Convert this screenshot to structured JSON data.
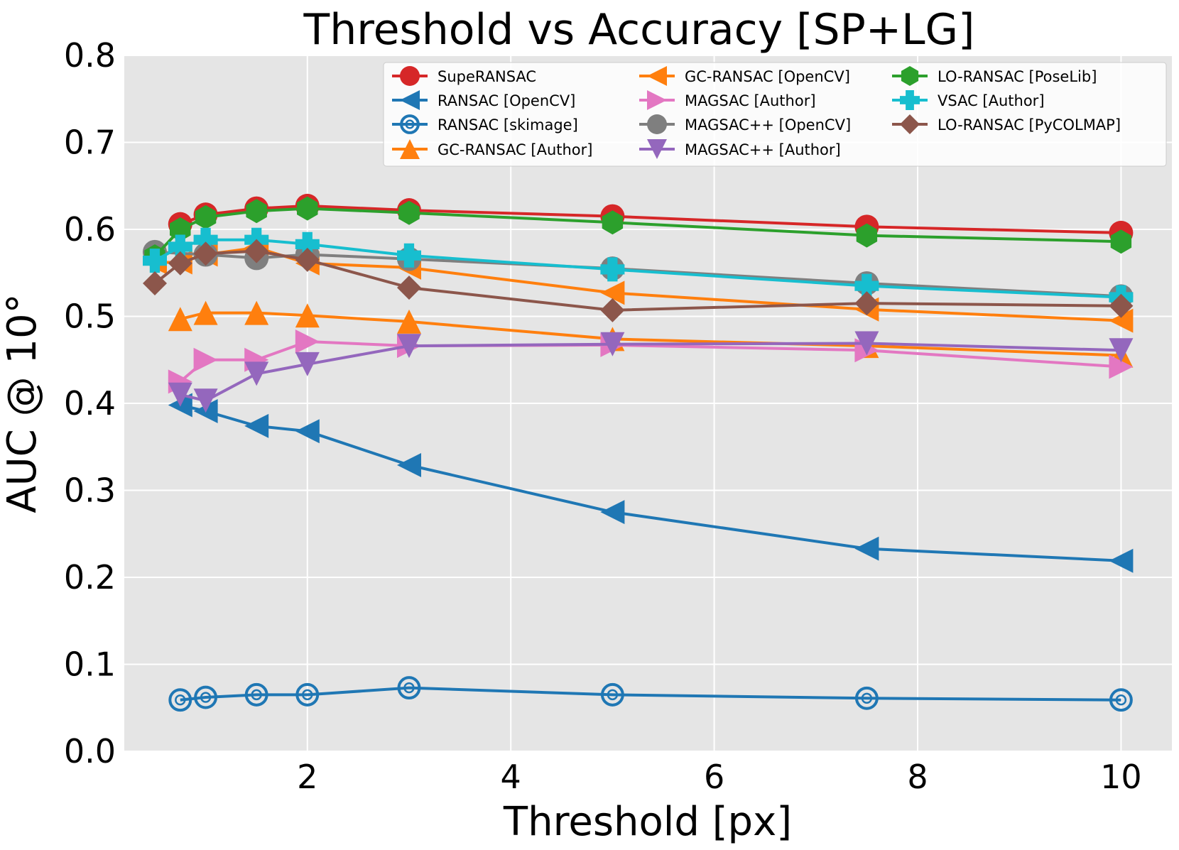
{
  "chart_data": {
    "type": "line",
    "title": "Threshold vs Accuracy [SP+LG]",
    "xlabel": "Threshold [px]",
    "ylabel": "AUC @ 10°",
    "xlim": [
      0.2,
      10.5
    ],
    "ylim": [
      0.0,
      0.8
    ],
    "xticks": [
      2,
      4,
      6,
      8,
      10
    ],
    "yticks": [
      0.0,
      0.1,
      0.2,
      0.3,
      0.4,
      0.5,
      0.6,
      0.7,
      0.8
    ],
    "xtick_labels": [
      "2",
      "4",
      "6",
      "8",
      "10"
    ],
    "ytick_labels": [
      "0.0",
      "0.1",
      "0.2",
      "0.3",
      "0.4",
      "0.5",
      "0.6",
      "0.7",
      "0.8"
    ],
    "grid": true,
    "legend_position": "top-right",
    "series": [
      {
        "name": "SupeRANSAC",
        "color": "#d62728",
        "marker": "circle",
        "x": [
          0.75,
          1,
          1.5,
          2,
          3,
          5,
          7.5,
          10
        ],
        "y": [
          0.606,
          0.617,
          0.624,
          0.627,
          0.622,
          0.615,
          0.603,
          0.596
        ]
      },
      {
        "name": "RANSAC [OpenCV]",
        "color": "#1f77b4",
        "marker": "triangle-left",
        "x": [
          0.75,
          1,
          1.5,
          2,
          3,
          5,
          7.5,
          10
        ],
        "y": [
          0.398,
          0.391,
          0.374,
          0.368,
          0.329,
          0.275,
          0.233,
          0.219
        ]
      },
      {
        "name": "RANSAC [skimage]",
        "color": "#1f77b4",
        "marker": "target",
        "x": [
          0.75,
          1,
          1.5,
          2,
          3,
          5,
          7.5,
          10
        ],
        "y": [
          0.059,
          0.062,
          0.065,
          0.065,
          0.073,
          0.065,
          0.061,
          0.059
        ]
      },
      {
        "name": "GC-RANSAC [Author]",
        "color": "#ff7f0e",
        "marker": "triangle-up",
        "x": [
          0.75,
          1,
          1.5,
          2,
          3,
          5,
          7.5,
          10
        ],
        "y": [
          0.497,
          0.504,
          0.504,
          0.501,
          0.494,
          0.474,
          0.466,
          0.455
        ]
      },
      {
        "name": "GC-RANSAC [OpenCV]",
        "color": "#ff7f0e",
        "marker": "triangle-left",
        "x": [
          0.5,
          0.75,
          1,
          1.5,
          2,
          3,
          5,
          7.5,
          10
        ],
        "y": [
          0.562,
          0.562,
          0.571,
          0.579,
          0.561,
          0.556,
          0.527,
          0.508,
          0.495
        ]
      },
      {
        "name": "MAGSAC [Author]",
        "color": "#e377c2",
        "marker": "triangle-right",
        "x": [
          0.75,
          1,
          1.5,
          2,
          3,
          5,
          7.5,
          10
        ],
        "y": [
          0.425,
          0.45,
          0.45,
          0.471,
          0.466,
          0.467,
          0.461,
          0.442
        ]
      },
      {
        "name": "MAGSAC++ [OpenCV]",
        "color": "#7f7f7f",
        "marker": "circle",
        "x": [
          0.5,
          1,
          1.5,
          2,
          3,
          5,
          7.5,
          10
        ],
        "y": [
          0.574,
          0.571,
          0.567,
          0.571,
          0.566,
          0.555,
          0.538,
          0.523
        ]
      },
      {
        "name": "MAGSAC++ [Author]",
        "color": "#9467bd",
        "marker": "triangle-down",
        "x": [
          0.75,
          1,
          1.5,
          2,
          3,
          5,
          7.5,
          10
        ],
        "y": [
          0.41,
          0.403,
          0.434,
          0.445,
          0.466,
          0.468,
          0.469,
          0.461
        ]
      },
      {
        "name": "LO-RANSAC [PoseLib]",
        "color": "#2ca02c",
        "marker": "hexagon",
        "x": [
          0.5,
          0.75,
          1,
          1.5,
          2,
          3,
          5,
          7.5,
          10
        ],
        "y": [
          0.569,
          0.6,
          0.614,
          0.621,
          0.624,
          0.619,
          0.608,
          0.593,
          0.586
        ]
      },
      {
        "name": "VSAC [Author]",
        "color": "#17becf",
        "marker": "plus",
        "x": [
          0.5,
          0.75,
          1,
          1.5,
          2,
          3,
          5,
          7.5,
          10
        ],
        "y": [
          0.564,
          0.58,
          0.588,
          0.588,
          0.583,
          0.57,
          0.554,
          0.535,
          0.522
        ]
      },
      {
        "name": "LO-RANSAC [PyCOLMAP]",
        "color": "#8c564b",
        "marker": "diamond",
        "x": [
          0.5,
          0.75,
          1,
          1.5,
          2,
          3,
          5,
          7.5,
          10
        ],
        "y": [
          0.538,
          0.561,
          0.572,
          0.575,
          0.565,
          0.533,
          0.507,
          0.515,
          0.512
        ]
      }
    ]
  }
}
